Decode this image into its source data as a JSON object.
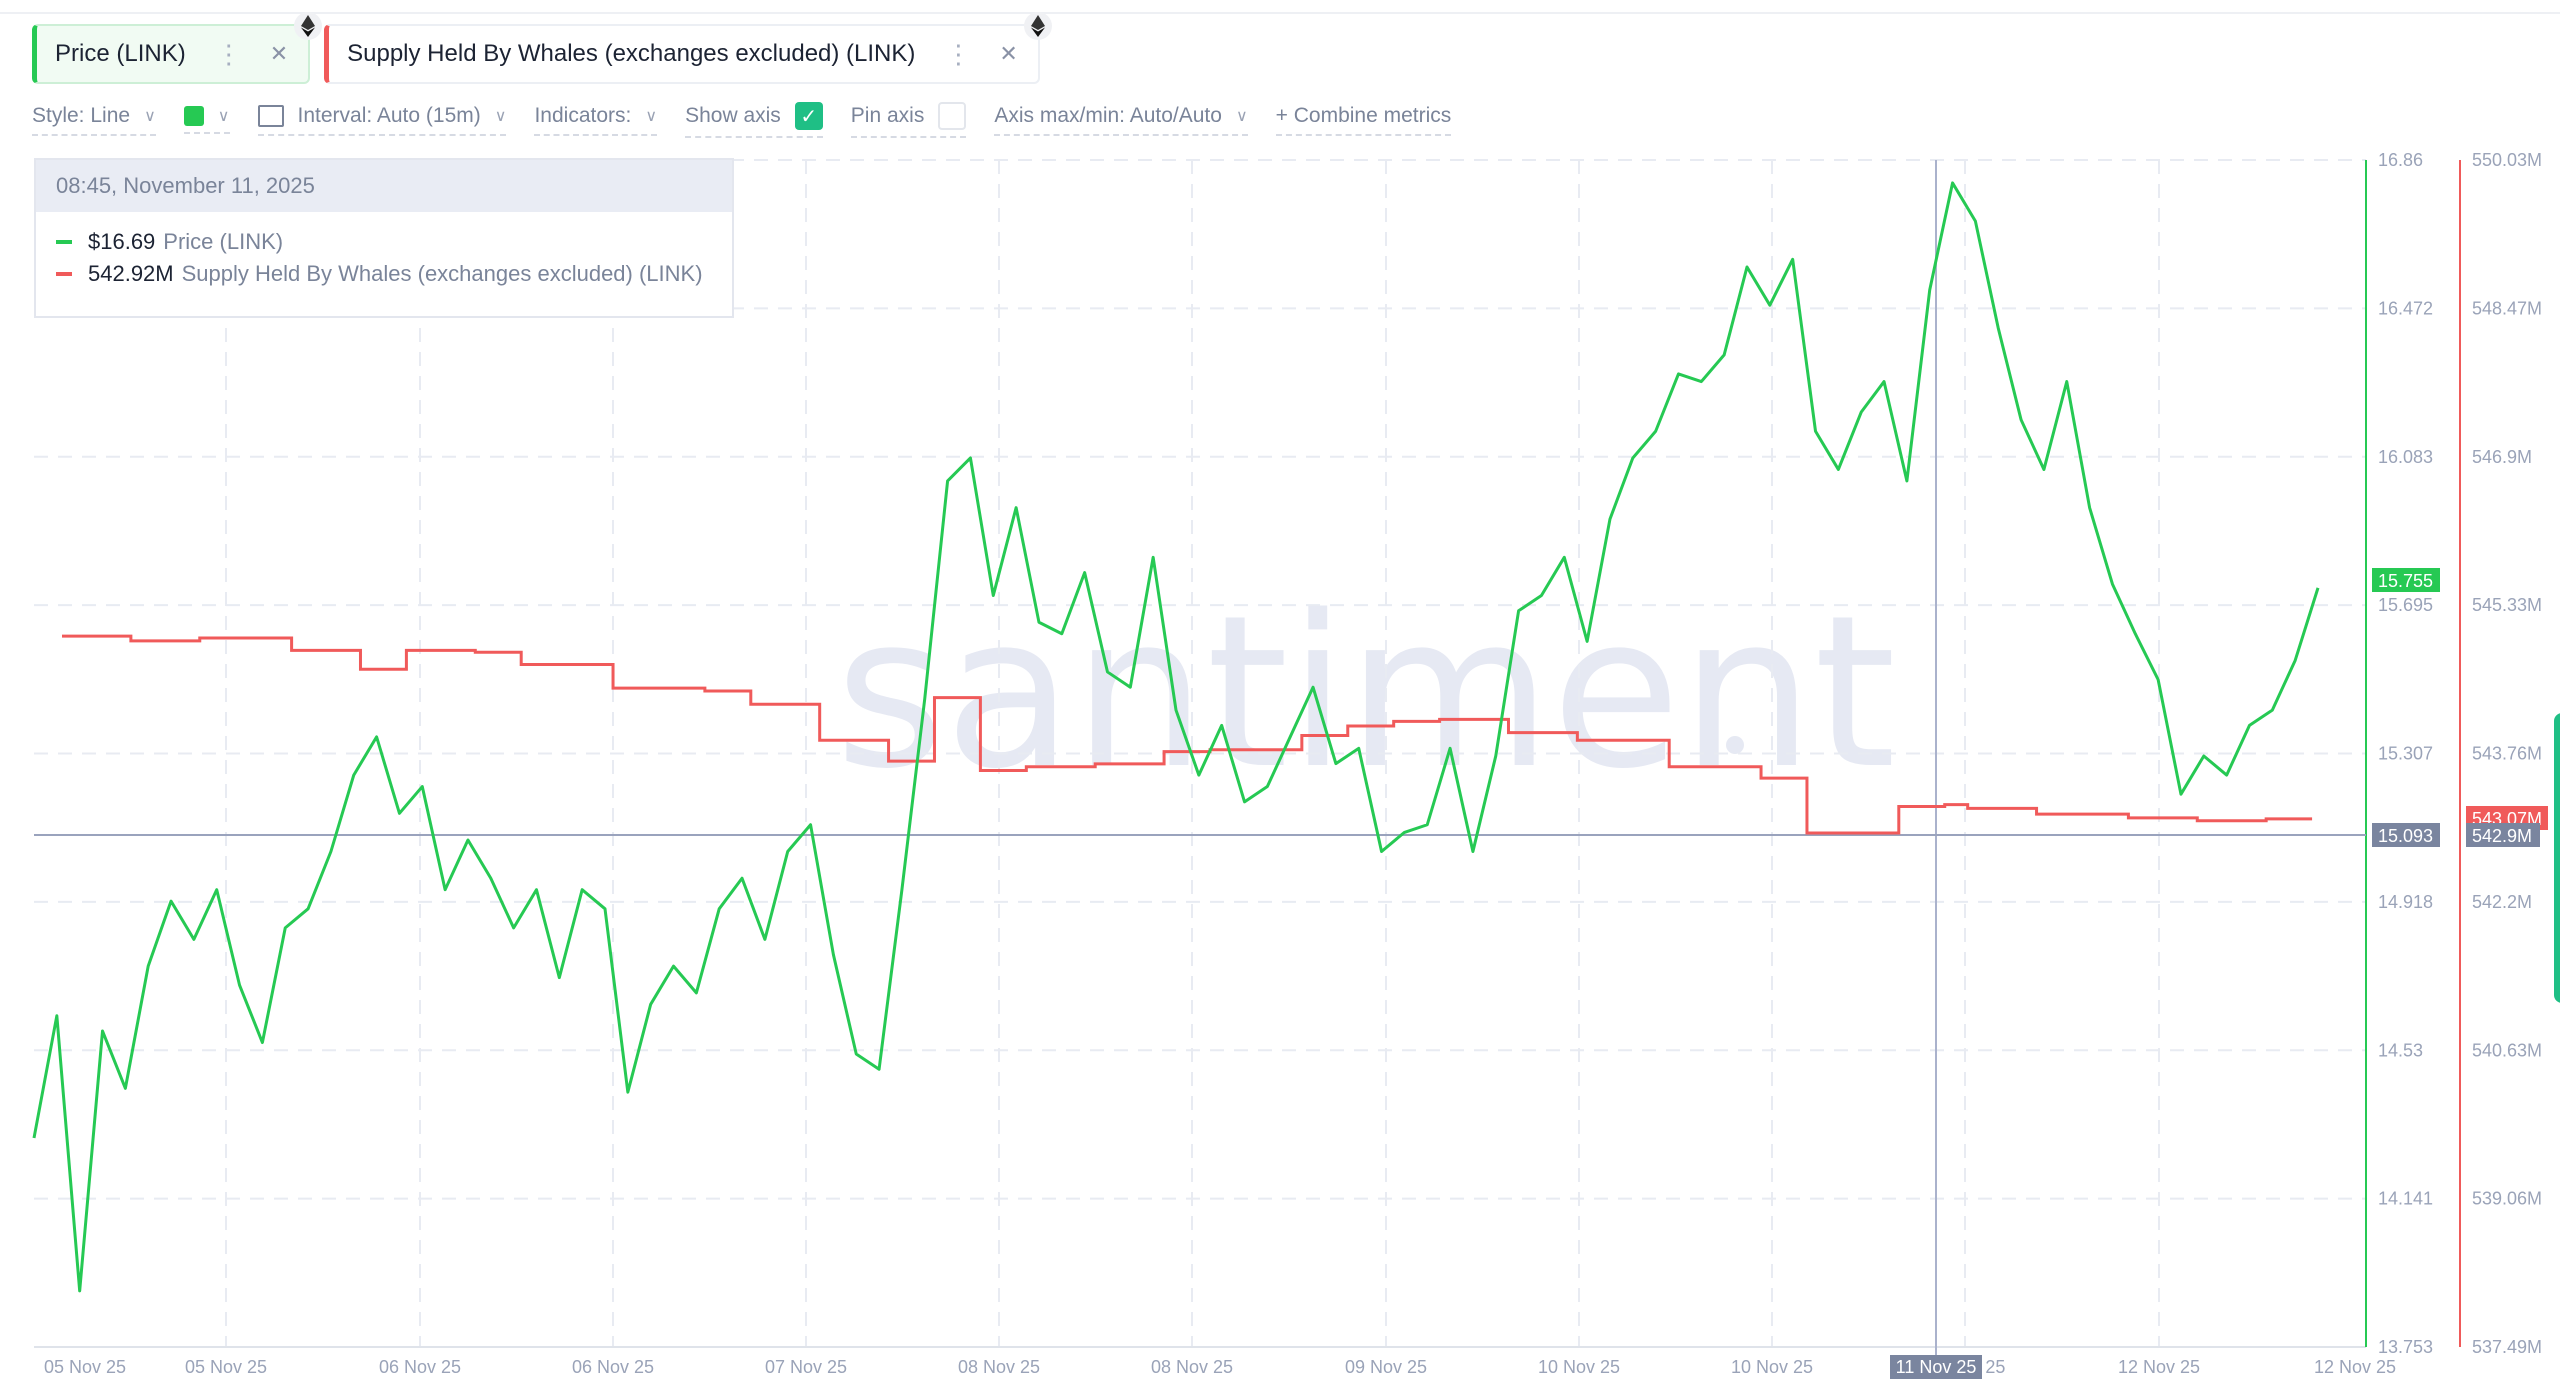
{
  "metrics": [
    {
      "label": "Price (LINK)",
      "color": "#26c953",
      "menu_icon": "kebab-icon",
      "close_icon": "close-icon",
      "asset_icon": "ethereum-icon"
    },
    {
      "label": "Supply Held By Whales (exchanges excluded) (LINK)",
      "color": "#f05a5a",
      "menu_icon": "kebab-icon",
      "close_icon": "close-icon",
      "asset_icon": "ethereum-icon"
    }
  ],
  "toolbar": {
    "style_label": "Style: Line",
    "color_swatch": "#26c953",
    "interval_label": "Interval: Auto (15m)",
    "indicators_label": "Indicators:",
    "show_axis_label": "Show axis",
    "show_axis_checked": true,
    "pin_axis_label": "Pin axis",
    "pin_axis_checked": false,
    "axis_maxmin_label": "Axis max/min: Auto/Auto",
    "combine_label": "+ Combine metrics"
  },
  "tooltip": {
    "timestamp": "08:45, November 11, 2025",
    "rows": [
      {
        "value": "$16.69",
        "label": "Price (LINK)",
        "color": "#26c953"
      },
      {
        "value": "542.92M",
        "label": "Supply Held By Whales (exchanges excluded) (LINK)",
        "color": "#f05a5a"
      }
    ]
  },
  "watermark": "santiment",
  "chart_data": {
    "type": "line",
    "title": "",
    "xlabel": "",
    "x_tick_labels": [
      "05 Nov 25",
      "05 Nov 25",
      "06 Nov 25",
      "06 Nov 25",
      "07 Nov 25",
      "08 Nov 25",
      "08 Nov 25",
      "09 Nov 25",
      "10 Nov 25",
      "10 Nov 25",
      "11 Nov 25",
      "12 Nov 25",
      "12 Nov 25"
    ],
    "crosshair_x_label": "11 Nov 25",
    "axes": {
      "price": {
        "ticks": [
          "16.86",
          "16.472",
          "16.083",
          "15.695",
          "15.307",
          "14.918",
          "14.53",
          "14.141",
          "13.753"
        ],
        "ylim": [
          13.753,
          16.86
        ],
        "current_label": "15.755",
        "crosshair_label": "15.093",
        "color": "#26c953"
      },
      "supply": {
        "ticks": [
          "550.03M",
          "548.47M",
          "546.9M",
          "545.33M",
          "543.76M",
          "542.2M",
          "540.63M",
          "539.06M",
          "537.49M"
        ],
        "ylim": [
          537.49,
          550.03
        ],
        "current_label": "543.07M",
        "crosshair_label": "542.9M",
        "color": "#f05a5a"
      }
    },
    "grid": true,
    "series": [
      {
        "name": "Price (LINK)",
        "unit": "USD",
        "x": [
          0,
          0.01,
          0.02,
          0.03,
          0.04,
          0.05,
          0.06,
          0.07,
          0.08,
          0.09,
          0.1,
          0.11,
          0.12,
          0.13,
          0.14,
          0.15,
          0.16,
          0.17,
          0.18,
          0.19,
          0.2,
          0.21,
          0.22,
          0.23,
          0.24,
          0.25,
          0.26,
          0.27,
          0.28,
          0.29,
          0.3,
          0.31,
          0.32,
          0.33,
          0.34,
          0.35,
          0.36,
          0.37,
          0.38,
          0.39,
          0.4,
          0.41,
          0.42,
          0.43,
          0.44,
          0.45,
          0.46,
          0.47,
          0.48,
          0.49,
          0.5,
          0.51,
          0.52,
          0.53,
          0.54,
          0.55,
          0.56,
          0.57,
          0.58,
          0.59,
          0.6,
          0.61,
          0.62,
          0.63,
          0.64,
          0.65,
          0.66,
          0.67,
          0.68,
          0.69,
          0.7,
          0.71,
          0.72,
          0.73,
          0.74,
          0.75,
          0.76,
          0.77,
          0.78,
          0.79,
          0.8,
          0.81,
          0.82,
          0.83,
          0.84,
          0.85,
          0.86,
          0.87,
          0.88,
          0.89,
          0.9,
          0.91,
          0.92,
          0.93,
          0.94,
          0.95,
          0.96,
          0.97,
          0.98,
          0.99,
          1.0
        ],
        "values": [
          14.3,
          14.62,
          13.9,
          14.58,
          14.43,
          14.75,
          14.92,
          14.82,
          14.95,
          14.7,
          14.55,
          14.85,
          14.9,
          15.05,
          15.25,
          15.35,
          15.15,
          15.22,
          14.95,
          15.08,
          14.98,
          14.85,
          14.95,
          14.72,
          14.95,
          14.9,
          14.42,
          14.65,
          14.75,
          14.68,
          14.9,
          14.98,
          14.82,
          15.05,
          15.12,
          14.78,
          14.52,
          14.48,
          14.95,
          15.45,
          16.02,
          16.08,
          15.72,
          15.95,
          15.65,
          15.62,
          15.78,
          15.52,
          15.48,
          15.82,
          15.42,
          15.25,
          15.38,
          15.18,
          15.22,
          15.35,
          15.48,
          15.28,
          15.32,
          15.05,
          15.1,
          15.12,
          15.32,
          15.05,
          15.3,
          15.68,
          15.72,
          15.82,
          15.6,
          15.92,
          16.08,
          16.15,
          16.3,
          16.28,
          16.35,
          16.58,
          16.48,
          16.6,
          16.15,
          16.05,
          16.2,
          16.28,
          16.02,
          16.52,
          16.8,
          16.7,
          16.42,
          16.18,
          16.05,
          16.28,
          15.95,
          15.75,
          15.62,
          15.5,
          15.2,
          15.3,
          15.25,
          15.38,
          15.42,
          15.55,
          15.74
        ]
      },
      {
        "name": "Supply Held By Whales (exchanges excluded) (LINK)",
        "unit": "LINK",
        "x": [
          0,
          0.03,
          0.06,
          0.1,
          0.13,
          0.15,
          0.18,
          0.2,
          0.24,
          0.28,
          0.3,
          0.33,
          0.36,
          0.38,
          0.4,
          0.42,
          0.45,
          0.48,
          0.5,
          0.54,
          0.56,
          0.58,
          0.6,
          0.63,
          0.66,
          0.7,
          0.74,
          0.76,
          0.78,
          0.8,
          0.82,
          0.83,
          0.86,
          0.9,
          0.93,
          0.96,
          0.98
        ],
        "values": [
          545.0,
          544.95,
          544.98,
          544.85,
          544.65,
          544.85,
          544.83,
          544.7,
          544.45,
          544.42,
          544.28,
          543.9,
          543.68,
          544.35,
          543.58,
          543.62,
          543.65,
          543.78,
          543.8,
          543.95,
          544.05,
          544.1,
          544.12,
          543.98,
          543.9,
          543.62,
          543.5,
          542.92,
          542.92,
          543.2,
          543.22,
          543.18,
          543.12,
          543.08,
          543.05,
          543.07,
          543.07
        ]
      }
    ]
  }
}
